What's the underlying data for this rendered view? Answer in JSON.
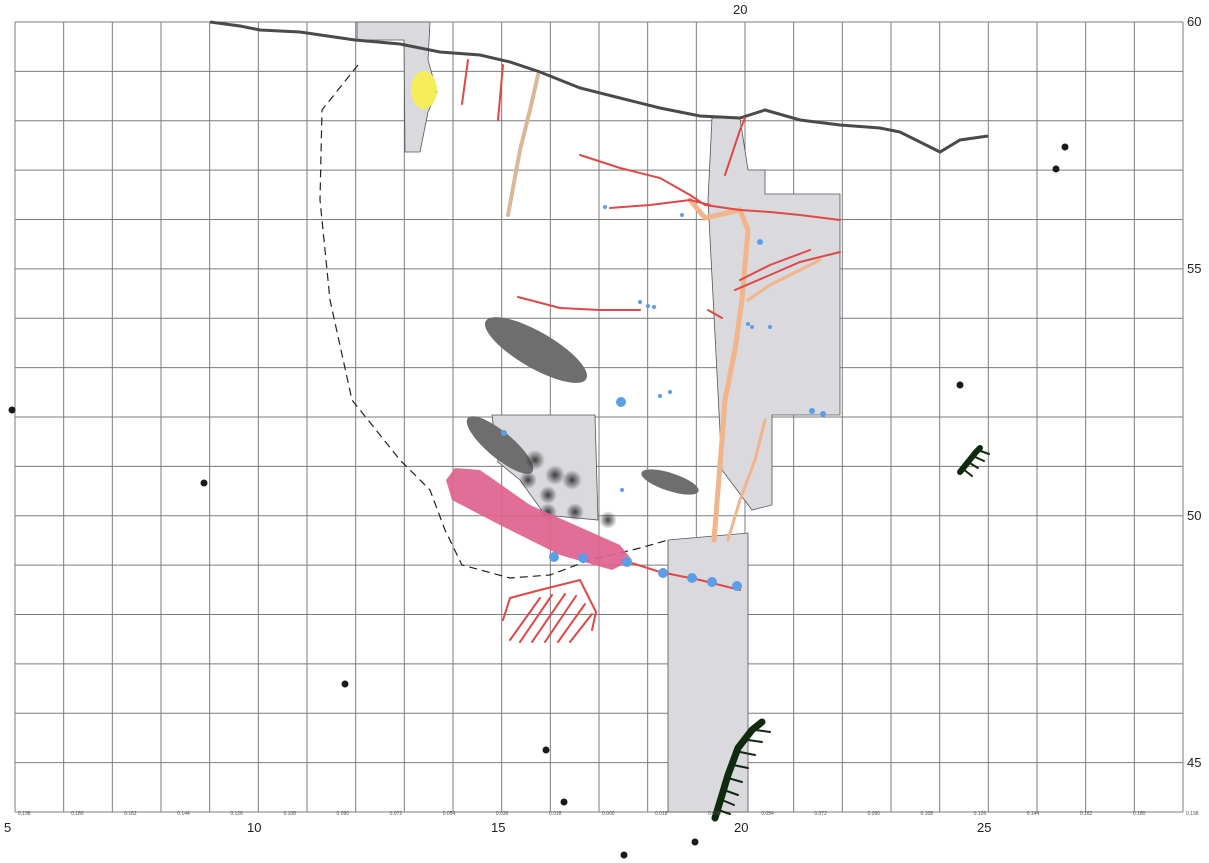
{
  "axes": {
    "x_labels": [
      {
        "value": "5"
      },
      {
        "value": "10"
      },
      {
        "value": "15"
      },
      {
        "value": "20"
      },
      {
        "value": "25"
      }
    ],
    "top_label": "20",
    "y_labels": [
      {
        "value": "60"
      },
      {
        "value": "55"
      },
      {
        "value": "50"
      },
      {
        "value": "45"
      }
    ],
    "bottom_tiny_ticks": [
      "0.198",
      "0.180",
      "0.162",
      "0.144",
      "0.126",
      "0.108",
      "0.090",
      "0.072",
      "0.054",
      "0.036",
      "0.018",
      "0.000",
      "0.018",
      "0.036",
      "0.054",
      "0.072",
      "0.090",
      "0.108",
      "0.126",
      "0.144",
      "0.162",
      "0.180",
      "0.198"
    ]
  },
  "legend_colors": {
    "grid": "#7a7a7a",
    "shaded_area": "#d9d9de",
    "red_features": "#e04848",
    "tan_features": "#d8b896",
    "orange_features": "#f2b48a",
    "blue_points": "#5b9ee8",
    "pink_band": "#e0628e",
    "dark_ellipses": "#6e6e6e",
    "yellow_spot": "#f5ee5a",
    "black_points": "#1a1a1a",
    "dark_green_features": "#0f2a0f"
  }
}
